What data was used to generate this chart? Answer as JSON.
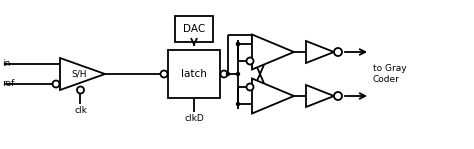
{
  "bg_color": "#ffffff",
  "line_color": "#000000",
  "lw": 1.3,
  "fig_width": 4.74,
  "fig_height": 1.49,
  "dpi": 100,
  "labels": {
    "in": "in",
    "ref": "ref",
    "clk": "clk",
    "sh": "S/H",
    "latch": "latch",
    "clkD": "clkD",
    "dac": "DAC",
    "to_gray": "to Gray\nCoder"
  }
}
